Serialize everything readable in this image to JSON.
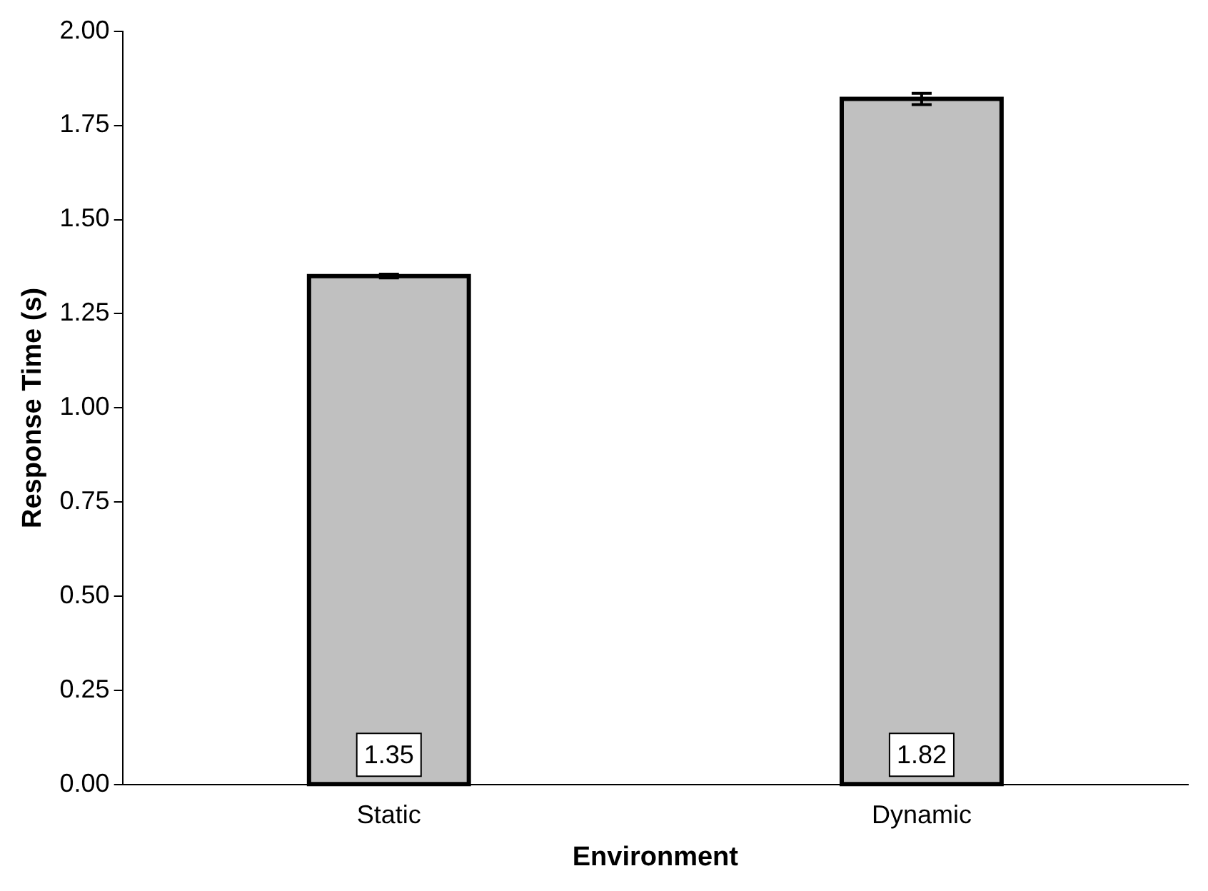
{
  "chart_data": {
    "type": "bar",
    "xlabel": "Environment",
    "ylabel": "Response Time (s)",
    "categories": [
      "Static",
      "Dynamic"
    ],
    "series": [
      {
        "color": "#c0c0c0",
        "values": [
          1.35,
          1.82
        ],
        "errors": [
          0.005,
          0.015
        ]
      }
    ],
    "ylim": [
      0,
      2
    ],
    "yticks": [
      {
        "value": 0,
        "label": "0.00"
      },
      {
        "value": 0.25,
        "label": "0.25"
      },
      {
        "value": 0.5,
        "label": "0.50"
      },
      {
        "value": 0.75,
        "label": "0.75"
      },
      {
        "value": 1,
        "label": "1.00"
      },
      {
        "value": 1.25,
        "label": "1.25"
      },
      {
        "value": 1.5,
        "label": "1.50"
      },
      {
        "value": 1.75,
        "label": "1.75"
      },
      {
        "value": 2,
        "label": "2.00"
      }
    ],
    "data_labels": true,
    "grid": false,
    "legend": false
  }
}
